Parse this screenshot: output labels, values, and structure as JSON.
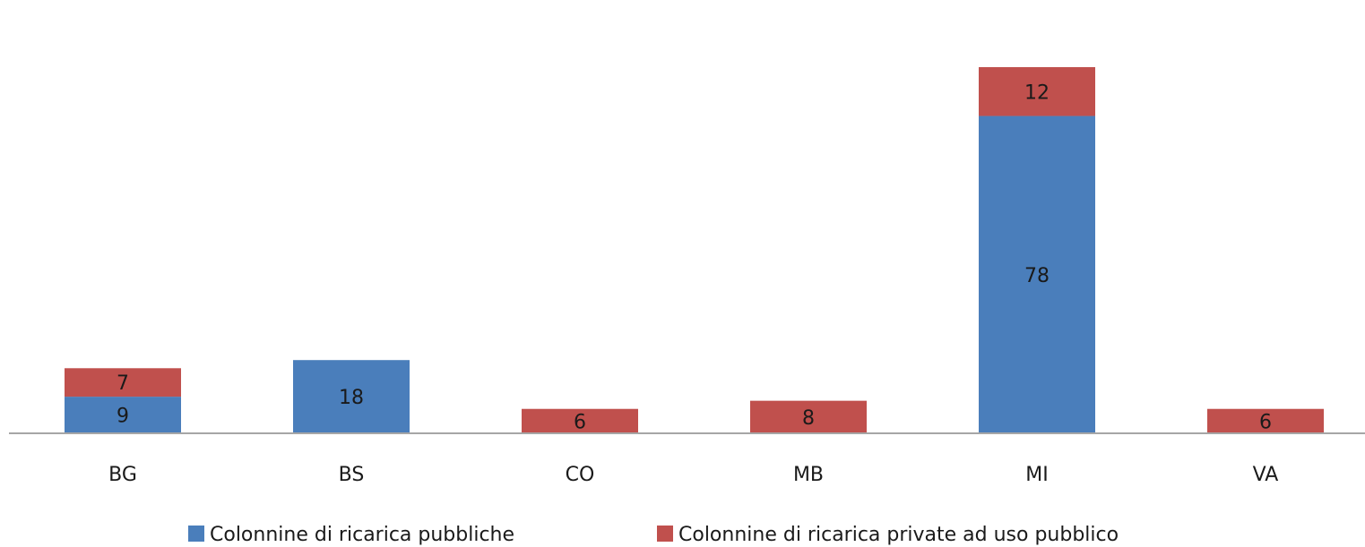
{
  "chart_data": {
    "type": "bar",
    "stacked": true,
    "categories": [
      "BG",
      "BS",
      "CO",
      "MB",
      "MI",
      "VA"
    ],
    "series": [
      {
        "name": "Colonnine di ricarica pubbliche",
        "color": "#4a7ebb",
        "values": [
          9,
          18,
          0,
          0,
          78,
          0
        ]
      },
      {
        "name": "Colonnine di ricarica private ad uso pubblico",
        "color": "#c0504d",
        "values": [
          7,
          0,
          6,
          8,
          12,
          0
        ]
      }
    ],
    "extra_segments": [
      {
        "category": "VA",
        "series": 1,
        "value": 6
      }
    ],
    "ylim": [
      0,
      90
    ],
    "grid": false,
    "legend": "bottom",
    "title": "",
    "xlabel": "",
    "ylabel": ""
  }
}
